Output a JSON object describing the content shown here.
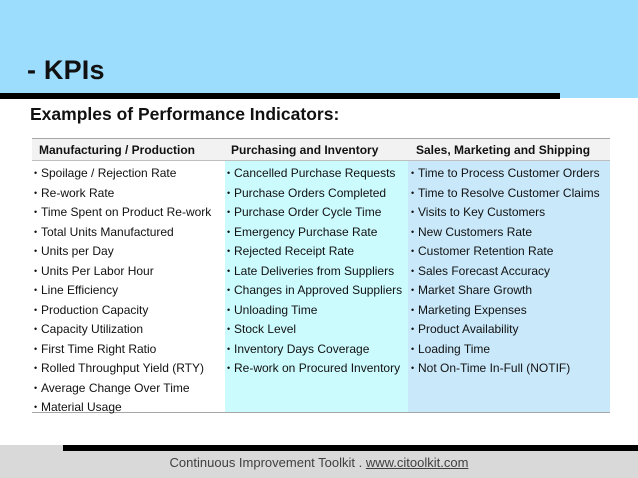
{
  "slide": {
    "title": "- KPIs",
    "subtitle": "Examples of Performance Indicators:"
  },
  "table": {
    "headers": [
      "Manufacturing  / Production",
      "Purchasing and Inventory",
      "Sales, Marketing and Shipping"
    ],
    "columns": [
      {
        "items": [
          "Spoilage / Rejection Rate",
          "Re-work Rate",
          "Time Spent on Product Re-work",
          "Total Units Manufactured",
          "Units per Day",
          "Units Per Labor Hour",
          "Line Efficiency",
          "Production Capacity",
          "Capacity Utilization",
          "First Time Right Ratio",
          "Rolled Throughput Yield (RTY)",
          "Average Change Over Time",
          "Material Usage"
        ]
      },
      {
        "items": [
          "Cancelled Purchase Requests",
          "Purchase Orders Completed",
          "Purchase Order Cycle Time",
          "Emergency Purchase Rate",
          "Rejected Receipt Rate",
          "Late Deliveries from Suppliers",
          "Changes in Approved Suppliers",
          "Unloading Time",
          "Stock Level",
          "Inventory Days Coverage",
          "Re-work on Procured Inventory"
        ]
      },
      {
        "items": [
          "Time to Process Customer Orders",
          "Time to Resolve Customer Claims",
          "Visits to Key Customers",
          "New Customers Rate",
          "Customer Retention Rate",
          "Sales Forecast Accuracy",
          "Market Share Growth",
          "Marketing Expenses",
          "Product Availability",
          "Loading Time",
          "Not On-Time In-Full (NOTIF)"
        ]
      }
    ],
    "bullet": "•"
  },
  "footer": {
    "text": "Continuous Improvement Toolkit . ",
    "link": "www.citoolkit.com"
  },
  "colors": {
    "banner": "#9cdcfd",
    "header_row": "#f2f2f2",
    "col_purchasing": "#ccfbfe",
    "col_sales": "#c9e9fb",
    "footer": "#d9d9d9"
  }
}
